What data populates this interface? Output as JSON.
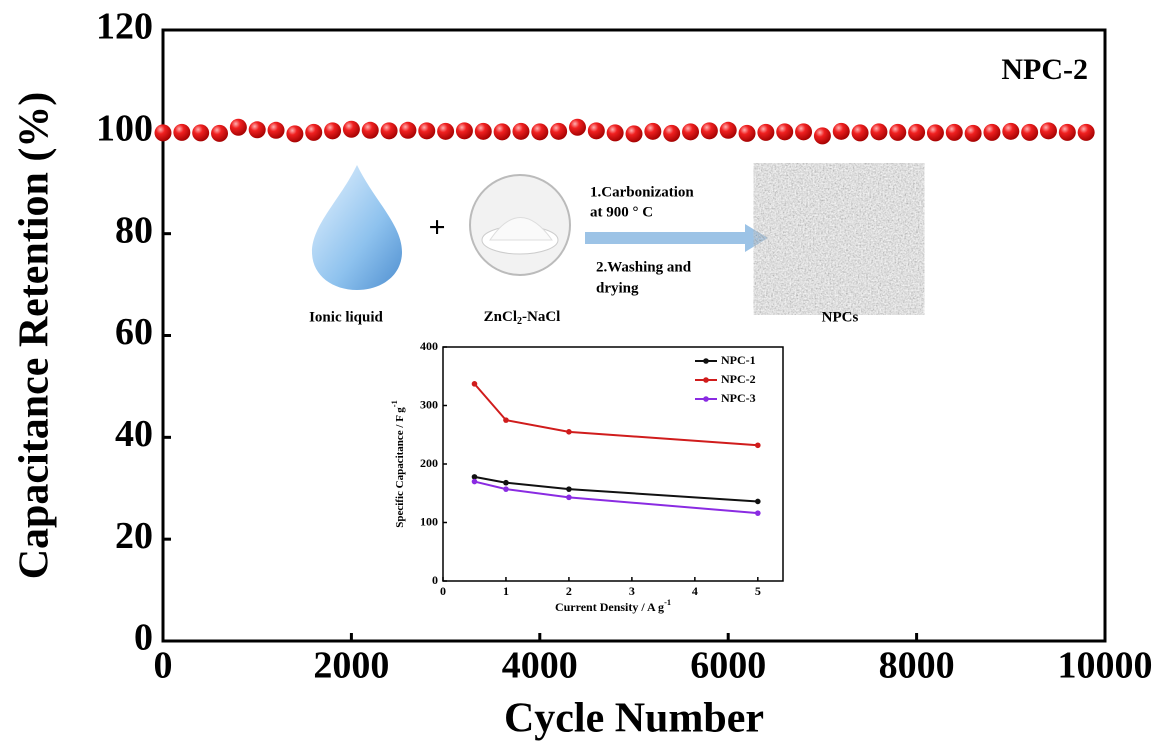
{
  "chart_data": [
    {
      "type": "scatter",
      "xlabel": "Cycle Number",
      "ylabel": "Capacitance Retention (%)",
      "annotation": "NPC-2",
      "x": [
        0,
        200,
        400,
        600,
        800,
        1000,
        1200,
        1400,
        1600,
        1800,
        2000,
        2200,
        2400,
        2600,
        2800,
        3000,
        3200,
        3400,
        3600,
        3800,
        4000,
        4200,
        4400,
        4600,
        4800,
        5000,
        5200,
        5400,
        5600,
        5800,
        6000,
        6200,
        6400,
        6600,
        6800,
        7000,
        7200,
        7400,
        7600,
        7800,
        8000,
        8200,
        8400,
        8600,
        8800,
        9000,
        9200,
        9400,
        9600,
        9800
      ],
      "series": [
        {
          "name": "NPC-2",
          "color": "#e8141a",
          "values": [
            99.8,
            99.9,
            99.8,
            99.7,
            100.9,
            100.4,
            100.3,
            99.6,
            99.9,
            100.2,
            100.5,
            100.3,
            100.2,
            100.3,
            100.2,
            100.1,
            100.2,
            100.1,
            100.0,
            100.1,
            100.0,
            100.1,
            100.9,
            100.2,
            99.8,
            99.6,
            100.1,
            99.7,
            100.0,
            100.2,
            100.3,
            99.7,
            99.9,
            100.0,
            100.0,
            99.2,
            100.1,
            99.8,
            100.0,
            99.9,
            99.9,
            99.8,
            99.9,
            99.7,
            99.9,
            100.1,
            99.9,
            100.2,
            99.9,
            99.9
          ]
        }
      ],
      "xlim": [
        0,
        10000
      ],
      "xticks": [
        0,
        2000,
        4000,
        6000,
        8000,
        10000
      ],
      "ylim": [
        0,
        120
      ],
      "yticks": [
        0,
        20,
        40,
        60,
        80,
        100,
        120
      ]
    },
    {
      "type": "line",
      "xlabel": [
        "Current Density / A g",
        "-1"
      ],
      "ylabel": [
        "Specific Capacitance / F g",
        "-1"
      ],
      "x": [
        0.5,
        1,
        2,
        5
      ],
      "series": [
        {
          "name": "NPC-1",
          "color": "#111111",
          "values": [
            178,
            168,
            157,
            136
          ]
        },
        {
          "name": "NPC-2",
          "color": "#d01c1c",
          "values": [
            337,
            275,
            255,
            232
          ]
        },
        {
          "name": "NPC-3",
          "color": "#8a2be2",
          "values": [
            170,
            157,
            143,
            116
          ]
        }
      ],
      "xlim": [
        0,
        5.4
      ],
      "xticks": [
        0,
        1,
        2,
        3,
        4,
        5
      ],
      "ylim": [
        0,
        400
      ],
      "yticks": [
        0,
        100,
        200,
        300,
        400
      ],
      "legend": "upper right"
    }
  ],
  "scheme": {
    "reactant1": "Ionic liquid",
    "plus": "+",
    "reactant2": [
      "ZnCl",
      "2",
      "-NaCl"
    ],
    "step1": [
      "1.Carbonization",
      "at 900 ° C"
    ],
    "step2": [
      "2.Washing and",
      "drying"
    ],
    "product": "NPCs"
  }
}
